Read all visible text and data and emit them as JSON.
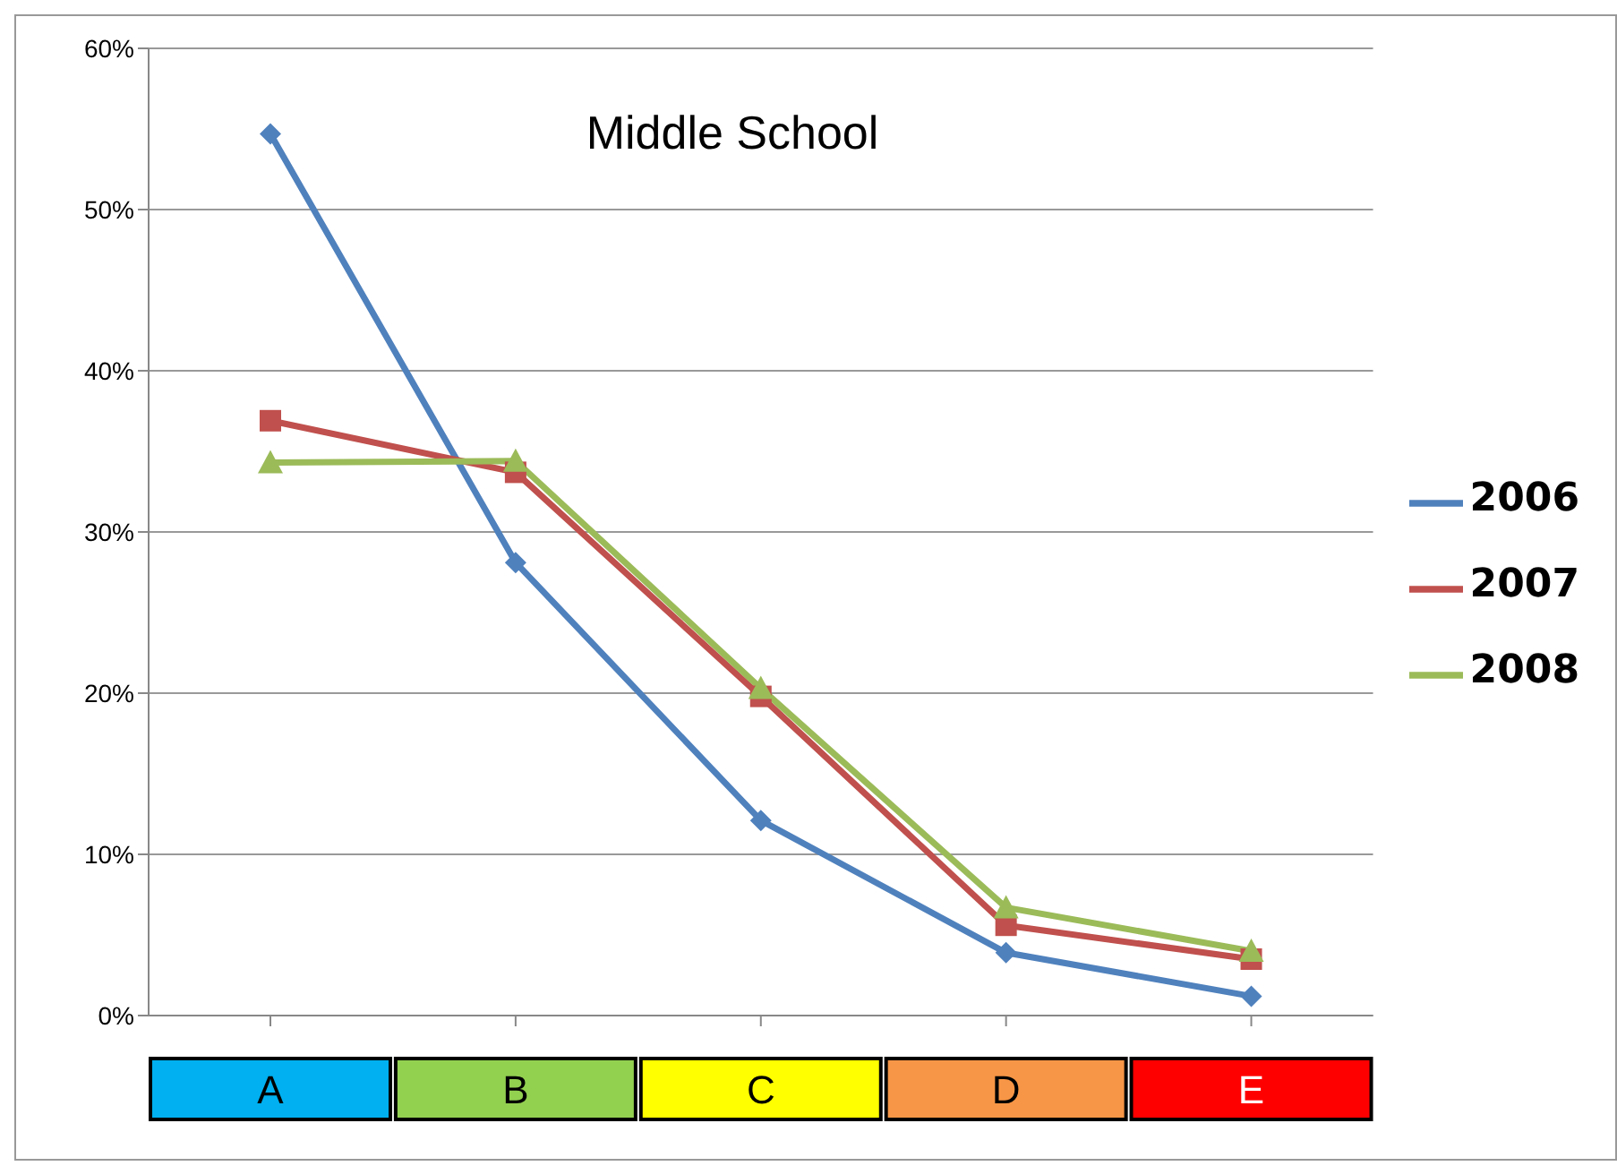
{
  "chart_data": {
    "type": "line",
    "title": "Middle School",
    "categories": [
      "A",
      "B",
      "C",
      "D",
      "E"
    ],
    "series": [
      {
        "name": "2006",
        "color": "#4f81bd",
        "marker": "diamond",
        "values": [
          54.7,
          28.1,
          12.1,
          3.9,
          1.2
        ]
      },
      {
        "name": "2007",
        "color": "#c0504d",
        "marker": "square",
        "values": [
          36.9,
          33.7,
          19.8,
          5.6,
          3.5
        ]
      },
      {
        "name": "2008",
        "color": "#9bbb59",
        "marker": "triangle",
        "values": [
          34.3,
          34.4,
          20.3,
          6.7,
          4.0
        ]
      }
    ],
    "ylim": [
      0,
      60
    ],
    "yticks": [
      {
        "value": 0,
        "label": "0%"
      },
      {
        "value": 10,
        "label": "10%"
      },
      {
        "value": 20,
        "label": "20%"
      },
      {
        "value": 30,
        "label": "30%"
      },
      {
        "value": 40,
        "label": "40%"
      },
      {
        "value": 50,
        "label": "50%"
      },
      {
        "value": 60,
        "label": "60%"
      }
    ],
    "grid": "y",
    "legend": "right"
  }
}
